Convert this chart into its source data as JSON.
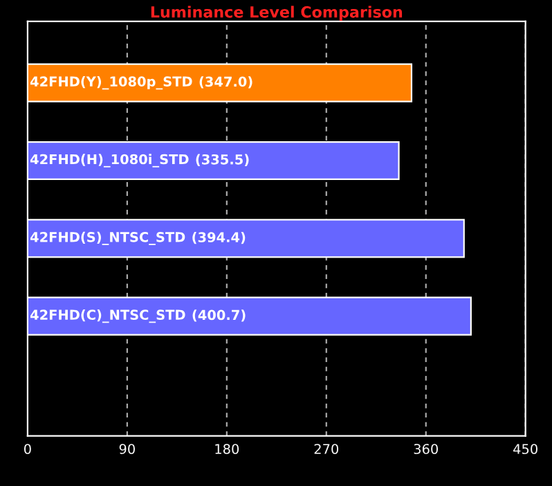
{
  "chart_data": {
    "type": "bar",
    "orientation": "horizontal",
    "title": "Luminance Level Comparison",
    "categories": [
      "42FHD(Y)_1080p_STD",
      "42FHD(H)_1080i_STD",
      "42FHD(S)_NTSC_STD",
      "42FHD(C)_NTSC_STD"
    ],
    "values": [
      347.0,
      335.5,
      394.4,
      400.7
    ],
    "value_labels": [
      "(347.0)",
      "(335.5)",
      "(394.4)",
      "(400.7)"
    ],
    "colors": [
      "#ff8000",
      "#6666ff",
      "#6666ff",
      "#6666ff"
    ],
    "xlim": [
      0,
      450
    ],
    "xticks": [
      0,
      90,
      180,
      270,
      360,
      450
    ],
    "grid": "x",
    "legend": false
  }
}
